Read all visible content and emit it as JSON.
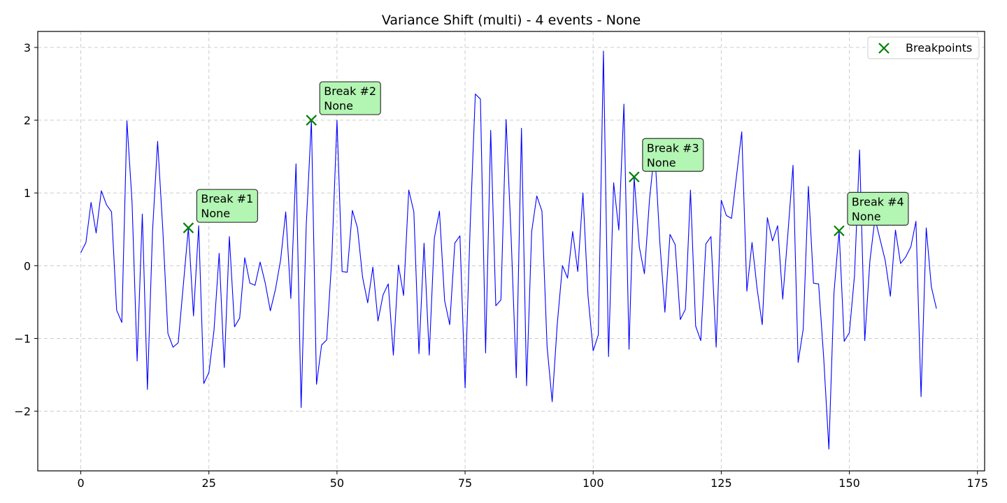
{
  "chart_data": {
    "type": "line",
    "title": "Variance Shift (multi) - 4 events - None",
    "xlabel": "",
    "ylabel": "",
    "xlim": [
      -8.4,
      176.4
    ],
    "ylim": [
      -2.82,
      3.22
    ],
    "xticks": [
      0,
      25,
      50,
      75,
      100,
      125,
      150,
      175
    ],
    "yticks": [
      -2,
      -1,
      0,
      1,
      2,
      3
    ],
    "grid": true,
    "legend_position": "top-right",
    "series": [
      {
        "color": "#0000ff",
        "x": [
          0,
          1,
          2,
          3,
          4,
          5,
          6,
          7,
          8,
          9,
          10,
          11,
          12,
          13,
          14,
          15,
          16,
          17,
          18,
          19,
          20,
          21,
          22,
          23,
          24,
          25,
          26,
          27,
          28,
          29,
          30,
          31,
          32,
          33,
          34,
          35,
          36,
          37,
          38,
          39,
          40,
          41,
          42,
          43,
          44,
          45,
          46,
          47,
          48,
          49,
          50,
          51,
          52,
          53,
          54,
          55,
          56,
          57,
          58,
          59,
          60,
          61,
          62,
          63,
          64,
          65,
          66,
          67,
          68,
          69,
          70,
          71,
          72,
          73,
          74,
          75,
          76,
          77,
          78,
          79,
          80,
          81,
          82,
          83,
          84,
          85,
          86,
          87,
          88,
          89,
          90,
          91,
          92,
          93,
          94,
          95,
          96,
          97,
          98,
          99,
          100,
          101,
          102,
          103,
          104,
          105,
          106,
          107,
          108,
          109,
          110,
          111,
          112,
          113,
          114,
          115,
          116,
          117,
          118,
          119,
          120,
          121,
          122,
          123,
          124,
          125,
          126,
          127,
          128,
          129,
          130,
          131,
          132,
          133,
          134,
          135,
          136,
          137,
          138,
          139,
          140,
          141,
          142,
          143,
          144,
          145,
          146,
          147,
          148,
          149,
          150,
          151,
          152,
          153,
          154,
          155,
          156,
          157,
          158,
          159,
          160,
          161,
          162,
          163,
          164,
          165,
          166,
          167
        ],
        "values": [
          0.18,
          0.32,
          0.87,
          0.45,
          1.03,
          0.84,
          0.74,
          -0.61,
          -0.78,
          1.99,
          0.88,
          -1.31,
          0.71,
          -1.7,
          0.47,
          1.71,
          0.5,
          -0.93,
          -1.12,
          -1.06,
          -0.27,
          0.52,
          -0.69,
          0.55,
          -1.62,
          -1.47,
          -0.89,
          0.17,
          -1.4,
          0.4,
          -0.84,
          -0.72,
          0.11,
          -0.24,
          -0.27,
          0.05,
          -0.24,
          -0.62,
          -0.32,
          0.08,
          0.74,
          -0.45,
          1.4,
          -1.95,
          0.55,
          2.0,
          -1.63,
          -1.09,
          -1.02,
          0.12,
          2.0,
          -0.08,
          -0.09,
          0.76,
          0.52,
          -0.16,
          -0.51,
          -0.02,
          -0.76,
          -0.4,
          -0.25,
          -1.23,
          0.01,
          -0.41,
          1.04,
          0.74,
          -1.21,
          0.31,
          -1.23,
          0.38,
          0.75,
          -0.48,
          -0.81,
          0.31,
          0.41,
          -1.68,
          0.56,
          2.36,
          2.29,
          -1.2,
          1.86,
          -0.55,
          -0.47,
          2.01,
          0.37,
          -1.54,
          1.89,
          -1.65,
          0.47,
          0.96,
          0.75,
          -1.11,
          -1.87,
          -0.8,
          0.0,
          -0.17,
          0.47,
          -0.08,
          1.0,
          -0.42,
          -1.17,
          -0.95,
          2.95,
          -1.25,
          1.14,
          0.49,
          2.22,
          -1.15,
          1.22,
          0.26,
          -0.11,
          0.91,
          1.6,
          0.33,
          -0.64,
          0.43,
          0.29,
          -0.74,
          -0.6,
          1.04,
          -0.83,
          -1.03,
          0.3,
          0.4,
          -1.12,
          0.9,
          0.69,
          0.65,
          1.25,
          1.84,
          -0.35,
          0.32,
          -0.32,
          -0.81,
          0.66,
          0.34,
          0.55,
          -0.46,
          0.43,
          1.38,
          -1.33,
          -0.87,
          1.09,
          -0.24,
          -0.25,
          -1.27,
          -2.52,
          -0.37,
          0.48,
          -1.04,
          -0.92,
          -0.14,
          1.59,
          -1.03,
          0.06,
          0.65,
          0.36,
          0.07,
          -0.42,
          0.49,
          0.03,
          0.12,
          0.26,
          0.61,
          -1.8,
          0.52,
          -0.29,
          -0.59
        ]
      }
    ],
    "breakpoints": {
      "legend_label": "Breakpoints",
      "color": "#008000",
      "points": [
        {
          "x": 21,
          "y": 0.52,
          "label_line1": "Break #1",
          "label_line2": "None"
        },
        {
          "x": 45,
          "y": 2.0,
          "label_line1": "Break #2",
          "label_line2": "None"
        },
        {
          "x": 108,
          "y": 1.22,
          "label_line1": "Break #3",
          "label_line2": "None"
        },
        {
          "x": 148,
          "y": 0.48,
          "label_line1": "Break #4",
          "label_line2": "None"
        }
      ]
    }
  }
}
